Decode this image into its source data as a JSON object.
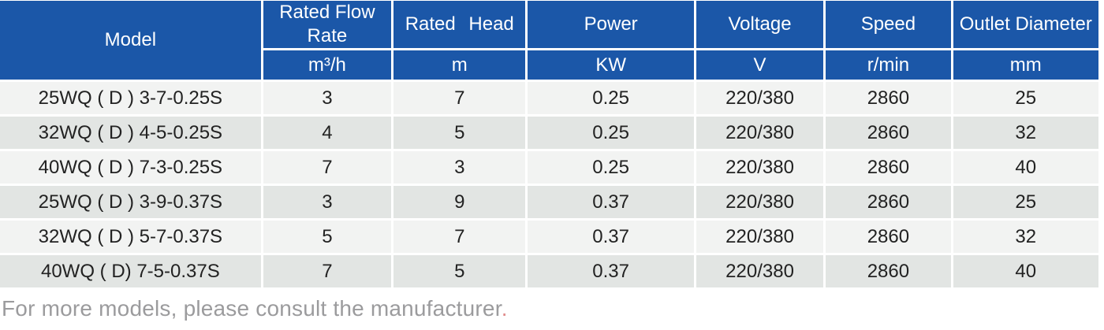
{
  "table": {
    "columns": [
      {
        "id": "model",
        "label": "Model",
        "unit": ""
      },
      {
        "id": "flow",
        "label": "Rated Flow Rate",
        "unit": "m³/h"
      },
      {
        "id": "head",
        "label": "Rated Head",
        "unit": "m"
      },
      {
        "id": "power",
        "label": "Power",
        "unit": "KW"
      },
      {
        "id": "voltage",
        "label": "Voltage",
        "unit": "V"
      },
      {
        "id": "speed",
        "label": "Speed",
        "unit": "r/min"
      },
      {
        "id": "outlet",
        "label": "Outlet Diameter",
        "unit": "mm"
      }
    ],
    "rows": [
      [
        "25WQ ( D ) 3-7-0.25S",
        "3",
        "7",
        "0.25",
        "220/380",
        "2860",
        "25"
      ],
      [
        "32WQ ( D ) 4-5-0.25S",
        "4",
        "5",
        "0.25",
        "220/380",
        "2860",
        "32"
      ],
      [
        "40WQ ( D ) 7-3-0.25S",
        "7",
        "3",
        "0.25",
        "220/380",
        "2860",
        "40"
      ],
      [
        "25WQ ( D ) 3-9-0.37S",
        "3",
        "9",
        "0.37",
        "220/380",
        "2860",
        "25"
      ],
      [
        "32WQ ( D ) 5-7-0.37S",
        "5",
        "7",
        "0.37",
        "220/380",
        "2860",
        "32"
      ],
      [
        "40WQ ( D) 7-5-0.37S",
        "7",
        "5",
        "0.37",
        "220/380",
        "2860",
        "40"
      ]
    ]
  },
  "footer": {
    "text": "For more models, please consult the manufacturer",
    "period": "."
  },
  "colors": {
    "header_bg": "#1b57a8",
    "header_text": "#ffffff",
    "row_light": "#f2f3f2",
    "row_dark": "#e2e5e3",
    "cell_text": "#222222",
    "grid_lines": "#ffffff",
    "footer_text": "#9b9b9d",
    "footer_period": "#e08c8c"
  }
}
